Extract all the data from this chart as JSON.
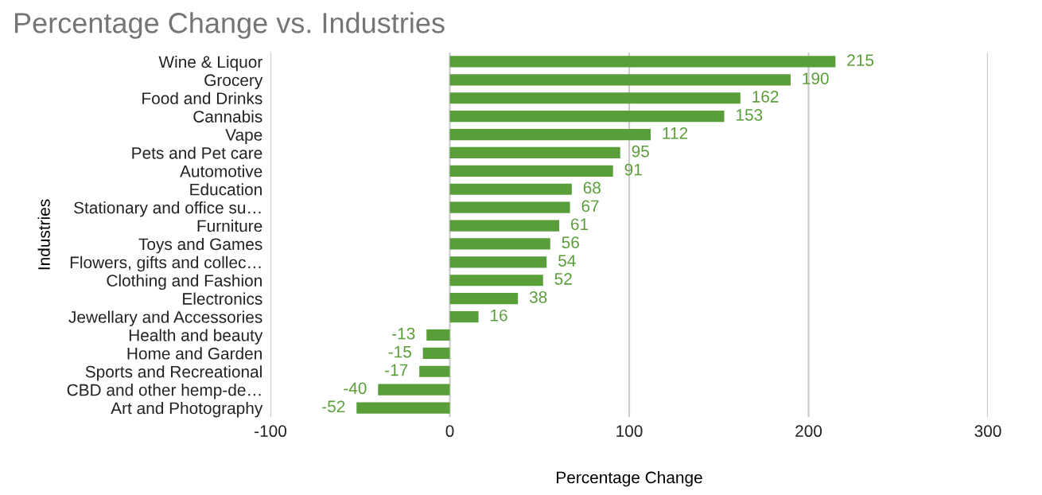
{
  "chart_data": {
    "type": "bar",
    "orientation": "horizontal",
    "title": "Percentage Change vs. Industries",
    "xlabel": "Percentage Change",
    "ylabel": "Industries",
    "categories": [
      "Wine & Liquor",
      "Grocery",
      "Food and Drinks",
      "Cannabis",
      "Vape",
      "Pets and Pet care",
      "Automotive",
      "Education",
      "Stationary and office su…",
      "Furniture",
      "Toys and Games",
      "Flowers, gifts and collec…",
      "Clothing and Fashion",
      "Electronics",
      "Jewellary and Accessories",
      "Health and beauty",
      "Home and Garden",
      "Sports and Recreational",
      "CBD and other hemp-de…",
      "Art and Photography"
    ],
    "values": [
      215,
      190,
      162,
      153,
      112,
      95,
      91,
      68,
      67,
      61,
      56,
      54,
      52,
      38,
      16,
      -13,
      -15,
      -17,
      -40,
      -52
    ],
    "color": "#5a9e3a",
    "xlim": [
      -100,
      300
    ],
    "xticks": [
      -100,
      0,
      100,
      200,
      300
    ],
    "grid": "x",
    "data_labels": true
  }
}
